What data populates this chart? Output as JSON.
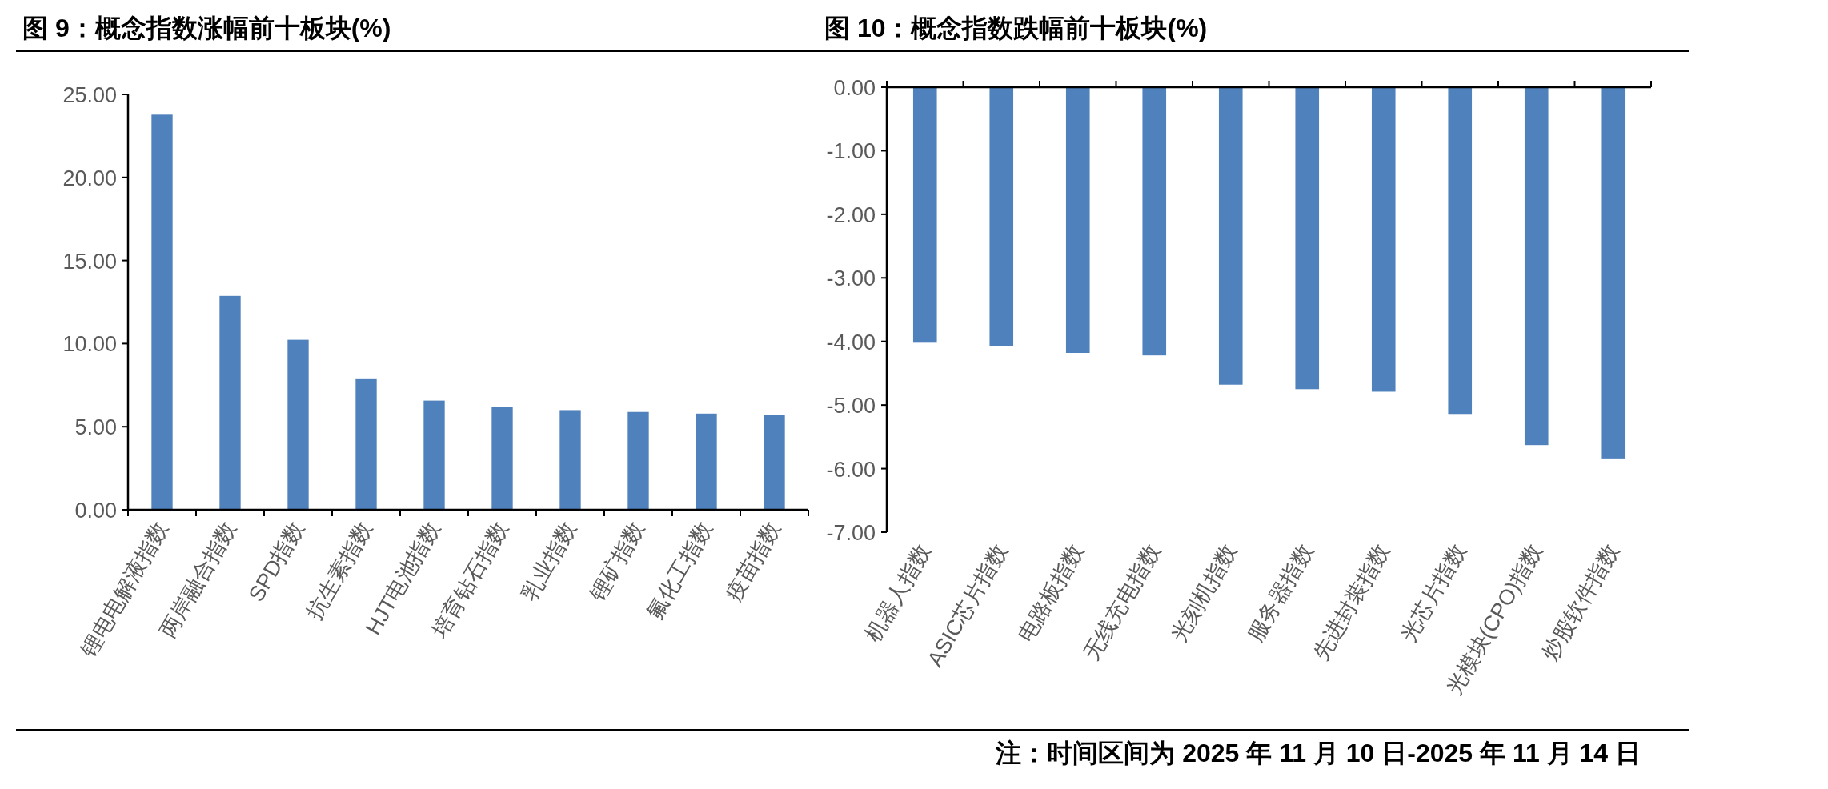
{
  "chart_data": [
    {
      "type": "bar",
      "title": "图 9：概念指数涨幅前十板块(%)",
      "categories": [
        "锂电电解液指数",
        "两岸融合指数",
        "SPD指数",
        "抗生素指数",
        "HJT电池指数",
        "培育钻石指数",
        "乳业指数",
        "锂矿指数",
        "氟化工指数",
        "疫苗指数"
      ],
      "values": [
        23.78,
        12.87,
        10.23,
        7.86,
        6.57,
        6.2,
        6.0,
        5.89,
        5.79,
        5.72
      ],
      "color": "#4f81bd",
      "ylim": [
        0,
        25
      ],
      "yticks": [
        {
          "value": 0,
          "label": "0.00"
        },
        {
          "value": 5,
          "label": "5.00"
        },
        {
          "value": 10,
          "label": "10.00"
        },
        {
          "value": 15,
          "label": "15.00"
        },
        {
          "value": 20,
          "label": "20.00"
        },
        {
          "value": 25,
          "label": "25.00"
        }
      ]
    },
    {
      "type": "bar",
      "title": "图 10：概念指数跌幅前十板块(%)",
      "categories": [
        "机器人指数",
        "ASIC芯片指数",
        "电路板指数",
        "无线充电指数",
        "光刻机指数",
        "服务器指数",
        "先进封装指数",
        "光芯片指数",
        "光模块(CPO)指数",
        "炒股软件指数"
      ],
      "values": [
        -4.02,
        -4.07,
        -4.18,
        -4.22,
        -4.68,
        -4.75,
        -4.79,
        -5.14,
        -5.63,
        -5.84
      ],
      "color": "#4f81bd",
      "ylim": [
        -7,
        0
      ],
      "yticks": [
        {
          "value": -7,
          "label": "-7.00"
        },
        {
          "value": -6,
          "label": "-6.00"
        },
        {
          "value": -5,
          "label": "-5.00"
        },
        {
          "value": -4,
          "label": "-4.00"
        },
        {
          "value": -3,
          "label": "-3.00"
        },
        {
          "value": -2,
          "label": "-2.00"
        },
        {
          "value": -1,
          "label": "-1.00"
        },
        {
          "value": 0,
          "label": "0.00"
        }
      ],
      "annotations": [
        "注：时间区间为 2025 年 11 月 10 日-2025 年 11 月 14 日"
      ]
    }
  ]
}
